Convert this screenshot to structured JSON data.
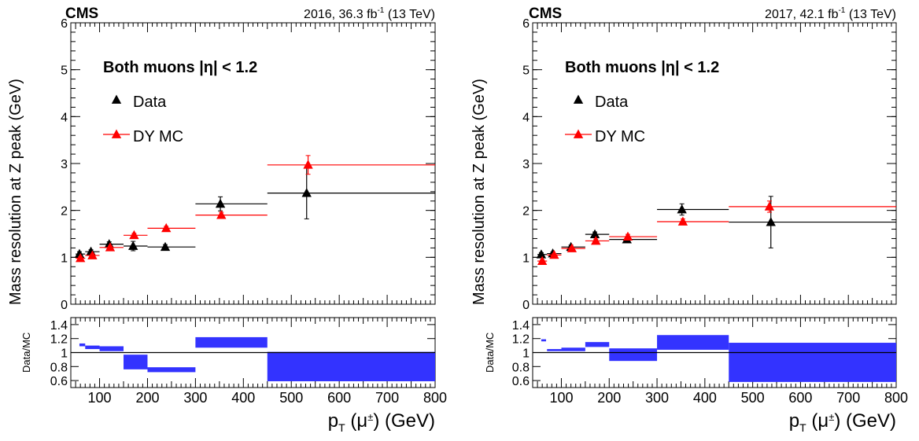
{
  "panels": [
    {
      "cms_label": "CMS",
      "lumi_label_pre": "2016, 36.3 fb",
      "lumi_label_exp": "-1",
      "lumi_label_post": " (13 TeV)",
      "selection_label": "Both muons |η| < 1.2",
      "ylabel": "Mass resolution at Z peak (GeV)",
      "ratio_ylabel": "Data/MC",
      "xlabel": "p_T (μ±) (GeV)",
      "legend": [
        {
          "label": "Data",
          "color": "#000000"
        },
        {
          "label": "DY MC",
          "color": "#ff0000"
        }
      ]
    },
    {
      "cms_label": "CMS",
      "lumi_label_pre": "2017, 42.1 fb",
      "lumi_label_exp": "-1",
      "lumi_label_post": " (13 TeV)",
      "selection_label": "Both muons |η| < 1.2",
      "ylabel": "Mass resolution at Z peak (GeV)",
      "ratio_ylabel": "Data/MC",
      "xlabel": "p_T (μ±) (GeV)",
      "legend": [
        {
          "label": "Data",
          "color": "#000000"
        },
        {
          "label": "DY MC",
          "color": "#ff0000"
        }
      ]
    }
  ],
  "chart_data": [
    {
      "type": "scatter",
      "title": "2016, 36.3 fb-1 (13 TeV)",
      "xlabel": "pT (μ±) (GeV)",
      "ylabel": "Mass resolution at Z peak (GeV)",
      "xlim": [
        40,
        800
      ],
      "ylim": [
        0,
        6
      ],
      "yticks": [
        0,
        1,
        2,
        3,
        4,
        5,
        6
      ],
      "xticks": [
        100,
        200,
        300,
        400,
        500,
        600,
        700,
        800
      ],
      "series": [
        {
          "name": "Data",
          "color": "#000000",
          "points": [
            {
              "xlo": 50,
              "xhi": 70,
              "x": 58,
              "y": 1.07,
              "err": 0.05
            },
            {
              "xlo": 70,
              "xhi": 100,
              "x": 82,
              "y": 1.12,
              "err": 0.04
            },
            {
              "xlo": 100,
              "xhi": 150,
              "x": 120,
              "y": 1.28,
              "err": 0.05
            },
            {
              "xlo": 150,
              "xhi": 200,
              "x": 170,
              "y": 1.24,
              "err": 0.1
            },
            {
              "xlo": 200,
              "xhi": 300,
              "x": 237,
              "y": 1.22,
              "err": 0.05
            },
            {
              "xlo": 300,
              "xhi": 450,
              "x": 352,
              "y": 2.14,
              "err": 0.15
            },
            {
              "xlo": 450,
              "xhi": 800,
              "x": 532,
              "y": 2.37,
              "err": 0.55
            }
          ]
        },
        {
          "name": "DY MC",
          "color": "#ff0000",
          "points": [
            {
              "xlo": 50,
              "xhi": 70,
              "x": 60,
              "y": 0.98,
              "err": 0.03
            },
            {
              "xlo": 70,
              "xhi": 100,
              "x": 85,
              "y": 1.04,
              "err": 0.03
            },
            {
              "xlo": 100,
              "xhi": 150,
              "x": 122,
              "y": 1.21,
              "err": 0.03
            },
            {
              "xlo": 150,
              "xhi": 200,
              "x": 172,
              "y": 1.47,
              "err": 0.04
            },
            {
              "xlo": 200,
              "xhi": 300,
              "x": 239,
              "y": 1.62,
              "err": 0.04
            },
            {
              "xlo": 300,
              "xhi": 450,
              "x": 354,
              "y": 1.9,
              "err": 0.06
            },
            {
              "xlo": 450,
              "xhi": 800,
              "x": 535,
              "y": 2.97,
              "err": 0.2
            }
          ]
        }
      ],
      "ratio": {
        "ylabel": "Data/MC",
        "ylim": [
          0.5,
          1.5
        ],
        "yticks": [
          0.6,
          0.8,
          1,
          1.2,
          1.4
        ],
        "bins": [
          {
            "xlo": 58,
            "xhi": 70,
            "lo": 1.09,
            "hi": 1.13
          },
          {
            "xlo": 70,
            "xhi": 100,
            "lo": 1.05,
            "hi": 1.1
          },
          {
            "xlo": 100,
            "xhi": 150,
            "lo": 1.02,
            "hi": 1.09
          },
          {
            "xlo": 150,
            "xhi": 200,
            "lo": 0.76,
            "hi": 0.97
          },
          {
            "xlo": 200,
            "xhi": 300,
            "lo": 0.72,
            "hi": 0.79
          },
          {
            "xlo": 300,
            "xhi": 450,
            "lo": 1.07,
            "hi": 1.22
          },
          {
            "xlo": 450,
            "xhi": 800,
            "lo": 0.59,
            "hi": 1.01
          }
        ]
      }
    },
    {
      "type": "scatter",
      "title": "2017, 42.1 fb-1 (13 TeV)",
      "xlabel": "pT (μ±) (GeV)",
      "ylabel": "Mass resolution at Z peak (GeV)",
      "xlim": [
        40,
        800
      ],
      "ylim": [
        0,
        6
      ],
      "yticks": [
        0,
        1,
        2,
        3,
        4,
        5,
        6
      ],
      "xticks": [
        100,
        200,
        300,
        400,
        500,
        600,
        700,
        800
      ],
      "series": [
        {
          "name": "Data",
          "color": "#000000",
          "points": [
            {
              "xlo": 50,
              "xhi": 70,
              "x": 58,
              "y": 1.06,
              "err": 0.04
            },
            {
              "xlo": 70,
              "xhi": 100,
              "x": 82,
              "y": 1.08,
              "err": 0.03
            },
            {
              "xlo": 100,
              "xhi": 150,
              "x": 120,
              "y": 1.22,
              "err": 0.04
            },
            {
              "xlo": 150,
              "xhi": 200,
              "x": 170,
              "y": 1.49,
              "err": 0.05
            },
            {
              "xlo": 200,
              "xhi": 300,
              "x": 237,
              "y": 1.38,
              "err": 0.06
            },
            {
              "xlo": 300,
              "xhi": 450,
              "x": 352,
              "y": 2.02,
              "err": 0.12
            },
            {
              "xlo": 450,
              "xhi": 800,
              "x": 538,
              "y": 1.75,
              "err": 0.55
            }
          ]
        },
        {
          "name": "DY MC",
          "color": "#ff0000",
          "points": [
            {
              "xlo": 50,
              "xhi": 70,
              "x": 60,
              "y": 0.92,
              "err": 0.03
            },
            {
              "xlo": 70,
              "xhi": 100,
              "x": 85,
              "y": 1.05,
              "err": 0.03
            },
            {
              "xlo": 100,
              "xhi": 150,
              "x": 122,
              "y": 1.19,
              "err": 0.03
            },
            {
              "xlo": 150,
              "xhi": 200,
              "x": 172,
              "y": 1.35,
              "err": 0.04
            },
            {
              "xlo": 200,
              "xhi": 300,
              "x": 239,
              "y": 1.44,
              "err": 0.05
            },
            {
              "xlo": 300,
              "xhi": 450,
              "x": 354,
              "y": 1.76,
              "err": 0.06
            },
            {
              "xlo": 450,
              "xhi": 800,
              "x": 535,
              "y": 2.08,
              "err": 0.12
            }
          ]
        }
      ],
      "ratio": {
        "ylabel": "Data/MC",
        "ylim": [
          0.5,
          1.5
        ],
        "yticks": [
          0.6,
          0.8,
          1,
          1.2,
          1.4
        ],
        "bins": [
          {
            "xlo": 58,
            "xhi": 68,
            "lo": 1.16,
            "hi": 1.19
          },
          {
            "xlo": 70,
            "xhi": 100,
            "lo": 1.02,
            "hi": 1.05
          },
          {
            "xlo": 100,
            "xhi": 150,
            "lo": 1.02,
            "hi": 1.07
          },
          {
            "xlo": 150,
            "xhi": 200,
            "lo": 1.08,
            "hi": 1.15
          },
          {
            "xlo": 200,
            "xhi": 300,
            "lo": 0.88,
            "hi": 1.06
          },
          {
            "xlo": 300,
            "xhi": 450,
            "lo": 1.04,
            "hi": 1.25
          },
          {
            "xlo": 450,
            "xhi": 800,
            "lo": 0.58,
            "hi": 1.14
          }
        ]
      }
    }
  ]
}
